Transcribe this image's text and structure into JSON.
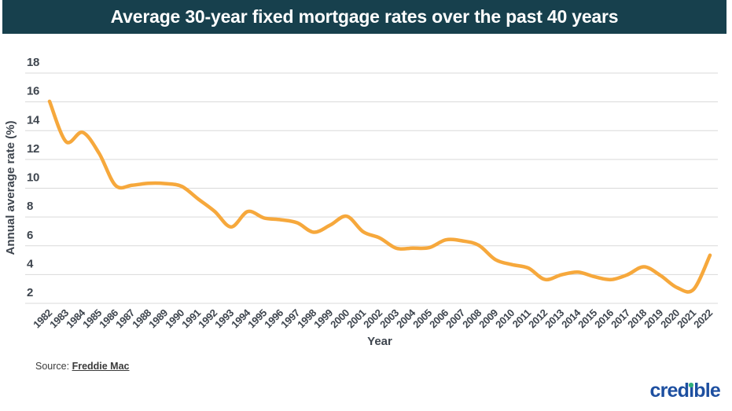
{
  "header": {
    "title": "Average 30-year fixed mortgage rates over the past 40 years",
    "background_color": "#17404d",
    "text_color": "#ffffff"
  },
  "chart_data": {
    "type": "line",
    "title": "Average 30-year fixed mortgage rates over the past 40 years",
    "xlabel": "Year",
    "ylabel": "Annual average rate (%)",
    "x": [
      1982,
      1983,
      1984,
      1985,
      1986,
      1987,
      1988,
      1989,
      1990,
      1991,
      1992,
      1993,
      1994,
      1995,
      1996,
      1997,
      1998,
      1999,
      2000,
      2001,
      2002,
      2003,
      2004,
      2005,
      2006,
      2007,
      2008,
      2009,
      2010,
      2011,
      2012,
      2013,
      2014,
      2015,
      2016,
      2017,
      2018,
      2019,
      2020,
      2021,
      2022
    ],
    "series": [
      {
        "name": "30-year fixed mortgage rate",
        "color": "#F6A83C",
        "values": [
          16.04,
          13.24,
          13.88,
          12.43,
          10.19,
          10.21,
          10.34,
          10.32,
          10.13,
          9.25,
          8.39,
          7.31,
          8.38,
          7.93,
          7.81,
          7.6,
          6.94,
          7.44,
          8.05,
          6.97,
          6.54,
          5.83,
          5.84,
          5.87,
          6.41,
          6.34,
          6.03,
          5.04,
          4.69,
          4.45,
          3.66,
          3.98,
          4.17,
          3.85,
          3.65,
          3.99,
          4.54,
          3.94,
          3.1,
          2.96,
          5.34
        ]
      }
    ],
    "ylim": [
      2,
      18
    ],
    "yticks": [
      2,
      4,
      6,
      8,
      10,
      12,
      14,
      16,
      18
    ],
    "grid": "horizontal",
    "legend": "none",
    "grid_color": "#d9d9d9",
    "tick_color": "#3e454e"
  },
  "footer": {
    "source_label": "Source: ",
    "source_link": "Freddie Mac",
    "logo_text": "credible",
    "logo_color": "#1d4fa0",
    "logo_dot_color": "#2fae7b"
  }
}
